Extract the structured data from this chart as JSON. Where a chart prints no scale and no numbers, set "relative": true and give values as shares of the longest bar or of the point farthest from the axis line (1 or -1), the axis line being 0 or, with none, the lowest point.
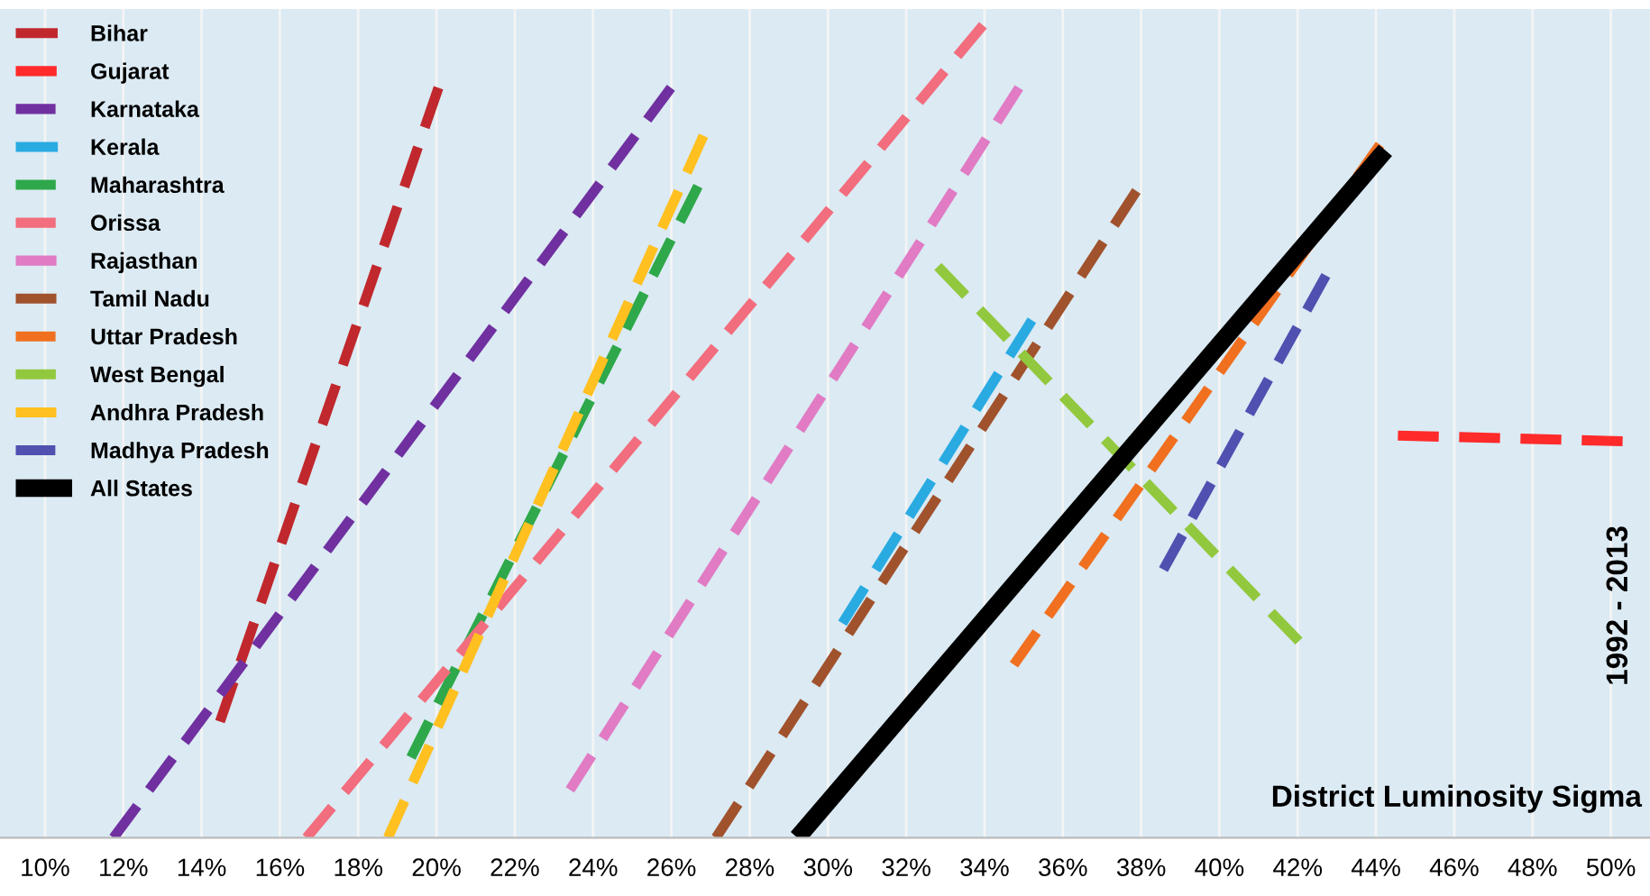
{
  "chart_data": {
    "type": "line",
    "relative": true,
    "xlabel": "District Luminosity Sigma",
    "ylabel": "1992 - 2013",
    "xlim": [
      8.85,
      51.0
    ],
    "xticks": [
      {
        "value": 10,
        "label": "10%"
      },
      {
        "value": 12,
        "label": "12%"
      },
      {
        "value": 14,
        "label": "14%"
      },
      {
        "value": 16,
        "label": "16%"
      },
      {
        "value": 18,
        "label": "18%"
      },
      {
        "value": 20,
        "label": "20%"
      },
      {
        "value": 22,
        "label": "22%"
      },
      {
        "value": 24,
        "label": "24%"
      },
      {
        "value": 26,
        "label": "26%"
      },
      {
        "value": 28,
        "label": "28%"
      },
      {
        "value": 30,
        "label": "30%"
      },
      {
        "value": 32,
        "label": "32%"
      },
      {
        "value": 34,
        "label": "34%"
      },
      {
        "value": 36,
        "label": "36%"
      },
      {
        "value": 38,
        "label": "38%"
      },
      {
        "value": 40,
        "label": "40%"
      },
      {
        "value": 42,
        "label": "42%"
      },
      {
        "value": 44,
        "label": "44%"
      },
      {
        "value": 46,
        "label": "46%"
      },
      {
        "value": 48,
        "label": "48%"
      },
      {
        "value": 50,
        "label": "50%"
      }
    ],
    "grid": "x",
    "legend": "top left",
    "marker": "none",
    "series": [
      {
        "name": "Bihar",
        "color": "#c0282d",
        "line_style": "dashed",
        "x": [
          14.47,
          20.05
        ],
        "values": [
          0.143,
          0.923
        ]
      },
      {
        "name": "Gujarat",
        "color": "#ff2a2a",
        "line_style": "dashed",
        "x": [
          44.56,
          50.3
        ],
        "values": [
          0.495,
          0.488
        ]
      },
      {
        "name": "Karnataka",
        "color": "#7030a0",
        "line_style": "dashed",
        "x": [
          11.75,
          25.99
        ],
        "values": [
          0,
          0.923
        ]
      },
      {
        "name": "Kerala",
        "color": "#29abe2",
        "line_style": "dashed",
        "x": [
          30.37,
          35.21
        ],
        "values": [
          0.264,
          0.637
        ]
      },
      {
        "name": "Maharashtra",
        "color": "#2ea84a",
        "line_style": "dashed",
        "x": [
          19.35,
          26.68
        ],
        "values": [
          0.099,
          0.802
        ]
      },
      {
        "name": "Orissa",
        "color": "#f26d7d",
        "line_style": "dashed",
        "x": [
          16.68,
          33.96
        ],
        "values": [
          0,
          1.0
        ]
      },
      {
        "name": "Rajasthan",
        "color": "#e07bc4",
        "line_style": "dashed",
        "x": [
          23.41,
          34.88
        ],
        "values": [
          0.059,
          0.923
        ]
      },
      {
        "name": "Tamil Nadu",
        "color": "#a0522d",
        "line_style": "dashed",
        "x": [
          27.14,
          37.88
        ],
        "values": [
          0,
          0.796
        ]
      },
      {
        "name": "Uttar Pradesh",
        "color": "#f07020",
        "line_style": "dashed",
        "x": [
          34.75,
          44.1
        ],
        "values": [
          0.213,
          0.853
        ]
      },
      {
        "name": "West Bengal",
        "color": "#92c83e",
        "line_style": "dashed",
        "x": [
          32.81,
          42.03
        ],
        "values": [
          0.703,
          0.242
        ]
      },
      {
        "name": "Andhra Pradesh",
        "color": "#ffc020",
        "line_style": "dashed",
        "x": [
          18.76,
          26.82
        ],
        "values": [
          0,
          0.864
        ]
      },
      {
        "name": "Madhya Pradesh",
        "color": "#5050b0",
        "line_style": "dashed",
        "x": [
          38.57,
          42.72
        ],
        "values": [
          0.33,
          0.692
        ]
      },
      {
        "name": "All States",
        "color": "#000000",
        "line_style": "solid",
        "x": [
          29.22,
          44.24
        ],
        "values": [
          0,
          0.846
        ]
      }
    ]
  }
}
